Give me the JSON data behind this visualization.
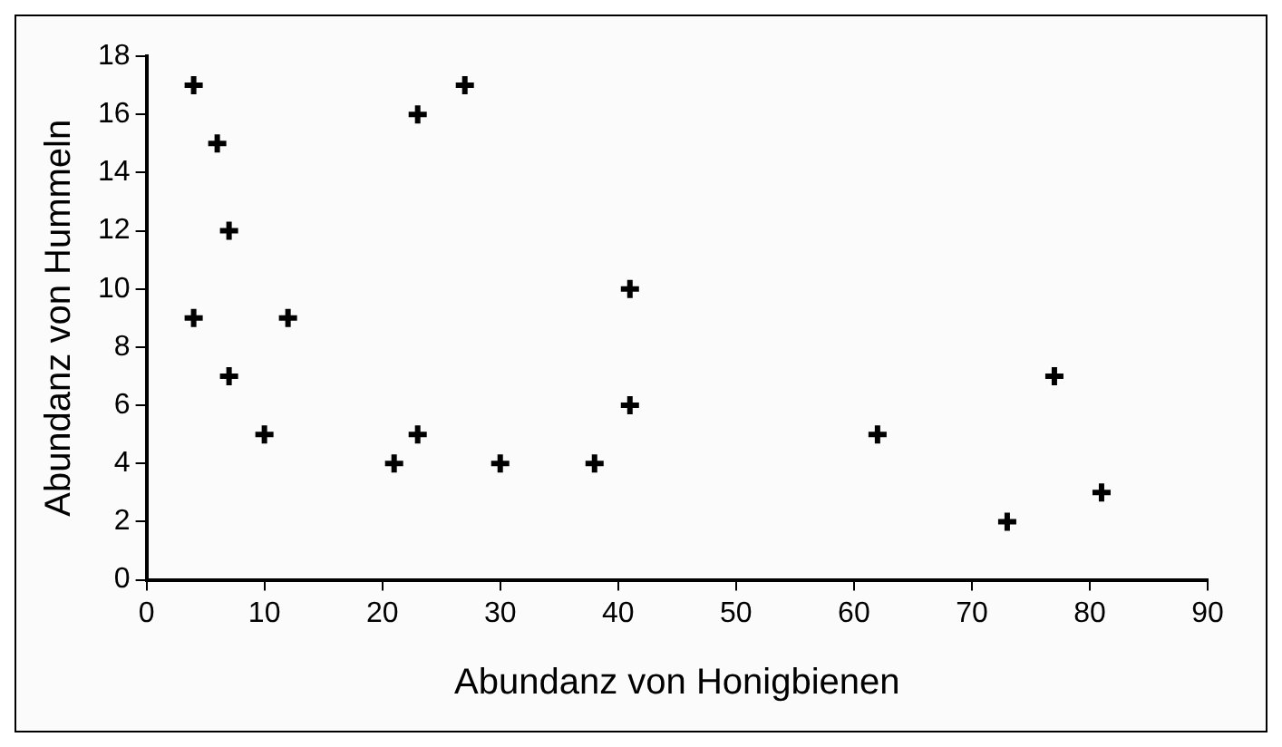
{
  "chart_data": {
    "type": "scatter",
    "xlabel": "Abundanz von Honigbienen",
    "ylabel": "Abundanz von Hummeln",
    "x": [
      4,
      6,
      7,
      4,
      7,
      12,
      10,
      21,
      23,
      23,
      27,
      30,
      38,
      41,
      41,
      62,
      73,
      77,
      81
    ],
    "values": [
      17,
      15,
      12,
      9,
      7,
      9,
      5,
      4,
      5,
      16,
      17,
      4,
      4,
      10,
      6,
      5,
      2,
      7,
      3
    ],
    "color": "#000000",
    "marker": "cross",
    "xlim": [
      0,
      90
    ],
    "xticks": [
      0,
      10,
      20,
      30,
      40,
      50,
      60,
      70,
      80,
      90
    ],
    "ylim": [
      0,
      18
    ],
    "yticks": [
      0,
      2,
      4,
      6,
      8,
      10,
      12,
      14,
      16,
      18
    ],
    "grid": false,
    "legend": false
  }
}
